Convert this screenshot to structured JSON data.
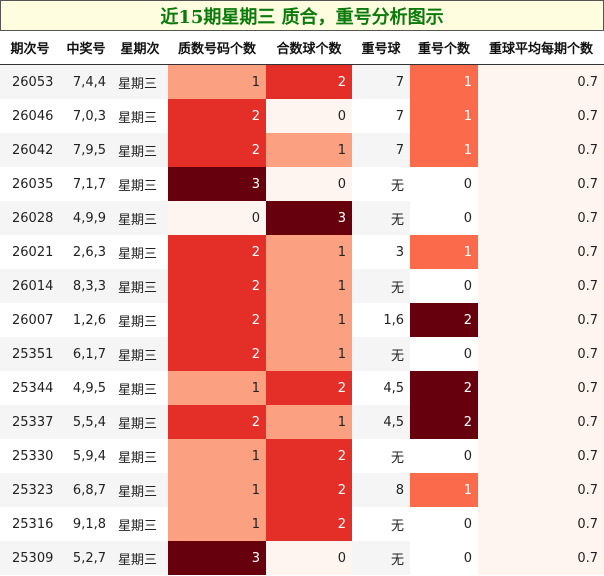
{
  "title": "近15期星期三 质合，重号分析图示",
  "headers": [
    "期次号",
    "中奖号",
    "星期次",
    "质数号码个数",
    "合数球个数",
    "重号球",
    "重号个数",
    "重球平均每期个数"
  ],
  "colors": {
    "title_text": "#0a7a0a",
    "title_bg": "#fffde0",
    "level_0": "#fff5f0",
    "level_1": "#fca082",
    "level_2": "#e32f27",
    "level_3": "#67000d",
    "dup_count_1": "#fb6a4a",
    "dup_count_2": "#67000d",
    "avg_bg": "#fff5f0"
  },
  "rows": [
    {
      "period": "26053",
      "draw": "7,4,4",
      "weekday": "星期三",
      "prime_count": 1,
      "composite_count": 2,
      "dup_balls": "7",
      "dup_count": 1,
      "avg_dup": "0.7"
    },
    {
      "period": "26046",
      "draw": "7,0,3",
      "weekday": "星期三",
      "prime_count": 2,
      "composite_count": 0,
      "dup_balls": "7",
      "dup_count": 1,
      "avg_dup": "0.7"
    },
    {
      "period": "26042",
      "draw": "7,9,5",
      "weekday": "星期三",
      "prime_count": 2,
      "composite_count": 1,
      "dup_balls": "7",
      "dup_count": 1,
      "avg_dup": "0.7"
    },
    {
      "period": "26035",
      "draw": "7,1,7",
      "weekday": "星期三",
      "prime_count": 3,
      "composite_count": 0,
      "dup_balls": "无",
      "dup_count": 0,
      "avg_dup": "0.7"
    },
    {
      "period": "26028",
      "draw": "4,9,9",
      "weekday": "星期三",
      "prime_count": 0,
      "composite_count": 3,
      "dup_balls": "无",
      "dup_count": 0,
      "avg_dup": "0.7"
    },
    {
      "period": "26021",
      "draw": "2,6,3",
      "weekday": "星期三",
      "prime_count": 2,
      "composite_count": 1,
      "dup_balls": "3",
      "dup_count": 1,
      "avg_dup": "0.7"
    },
    {
      "period": "26014",
      "draw": "8,3,3",
      "weekday": "星期三",
      "prime_count": 2,
      "composite_count": 1,
      "dup_balls": "无",
      "dup_count": 0,
      "avg_dup": "0.7"
    },
    {
      "period": "26007",
      "draw": "1,2,6",
      "weekday": "星期三",
      "prime_count": 2,
      "composite_count": 1,
      "dup_balls": "1,6",
      "dup_count": 2,
      "avg_dup": "0.7"
    },
    {
      "period": "25351",
      "draw": "6,1,7",
      "weekday": "星期三",
      "prime_count": 2,
      "composite_count": 1,
      "dup_balls": "无",
      "dup_count": 0,
      "avg_dup": "0.7"
    },
    {
      "period": "25344",
      "draw": "4,9,5",
      "weekday": "星期三",
      "prime_count": 1,
      "composite_count": 2,
      "dup_balls": "4,5",
      "dup_count": 2,
      "avg_dup": "0.7"
    },
    {
      "period": "25337",
      "draw": "5,5,4",
      "weekday": "星期三",
      "prime_count": 2,
      "composite_count": 1,
      "dup_balls": "4,5",
      "dup_count": 2,
      "avg_dup": "0.7"
    },
    {
      "period": "25330",
      "draw": "5,9,4",
      "weekday": "星期三",
      "prime_count": 1,
      "composite_count": 2,
      "dup_balls": "无",
      "dup_count": 0,
      "avg_dup": "0.7"
    },
    {
      "period": "25323",
      "draw": "6,8,7",
      "weekday": "星期三",
      "prime_count": 1,
      "composite_count": 2,
      "dup_balls": "8",
      "dup_count": 1,
      "avg_dup": "0.7"
    },
    {
      "period": "25316",
      "draw": "9,1,8",
      "weekday": "星期三",
      "prime_count": 1,
      "composite_count": 2,
      "dup_balls": "无",
      "dup_count": 0,
      "avg_dup": "0.7"
    },
    {
      "period": "25309",
      "draw": "5,2,7",
      "weekday": "星期三",
      "prime_count": 3,
      "composite_count": 0,
      "dup_balls": "无",
      "dup_count": 0,
      "avg_dup": "0.7"
    }
  ]
}
